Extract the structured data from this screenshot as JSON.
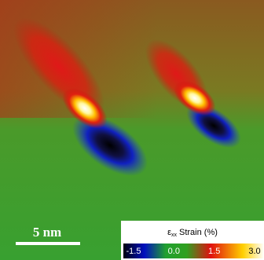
{
  "scale_bar": {
    "label": "5 nm"
  },
  "colorbar": {
    "title_symbol": "ε",
    "title_subscript": "xx",
    "title_rest": "Strain (%)",
    "ticks": [
      "-1.5",
      "0.0",
      "1.5",
      "3.0"
    ]
  }
}
